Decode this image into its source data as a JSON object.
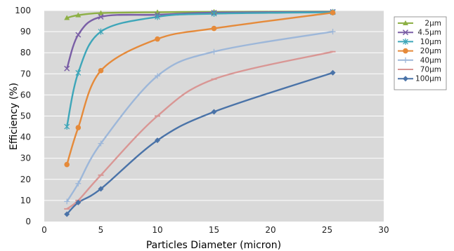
{
  "chart_data": {
    "type": "line",
    "title": "",
    "xlabel": "Particles Diameter (micron)",
    "ylabel": "Efficiency (%)",
    "xlim": [
      0,
      30
    ],
    "ylim": [
      0,
      100
    ],
    "x_ticks": [
      "0",
      "5",
      "10",
      "15",
      "20",
      "25",
      "30"
    ],
    "y_ticks": [
      "0",
      "10",
      "20",
      "30",
      "40",
      "50",
      "60",
      "70",
      "80",
      "90",
      "100"
    ],
    "grid": "horizontal",
    "background_color": "#d9d9d9",
    "legend_position": "right",
    "series": [
      {
        "name": "2μm",
        "color": "#8db045",
        "marker": "triangle",
        "x": [
          2,
          3,
          5,
          10,
          15,
          25.5
        ],
        "y": [
          96.5,
          97.8,
          98.8,
          99.2,
          99.4,
          99.5
        ]
      },
      {
        "name": "4.5μm",
        "color": "#7a5fa6",
        "marker": "x",
        "x": [
          2,
          3,
          5,
          10,
          15,
          25.5
        ],
        "y": [
          72.5,
          88.5,
          97,
          98,
          99,
          99.4
        ]
      },
      {
        "name": "10μm",
        "color": "#3ea6b9",
        "marker": "star",
        "x": [
          2,
          3,
          5,
          10,
          15,
          25.5
        ],
        "y": [
          45,
          70.5,
          90,
          97,
          98.5,
          99.2
        ]
      },
      {
        "name": "20μm",
        "color": "#e58a3a",
        "marker": "circle",
        "x": [
          2,
          3,
          5,
          10,
          15,
          25.5
        ],
        "y": [
          27,
          44.5,
          71.5,
          86.5,
          91.5,
          99
        ]
      },
      {
        "name": "40μm",
        "color": "#9db7d9",
        "marker": "plus",
        "x": [
          2,
          3,
          5,
          10,
          15,
          25.5
        ],
        "y": [
          9.5,
          18,
          37,
          69,
          80.5,
          90
        ]
      },
      {
        "name": "70μm",
        "color": "#d99694",
        "marker": "dash",
        "x": [
          2,
          3,
          5,
          10,
          15,
          25.5
        ],
        "y": [
          6,
          10,
          22,
          50,
          67.5,
          80.5
        ]
      },
      {
        "name": "100μm",
        "color": "#4a73a8",
        "marker": "diamond",
        "x": [
          2,
          3,
          5,
          10,
          15,
          25.5
        ],
        "y": [
          3.5,
          9,
          15.5,
          38.5,
          52,
          70.5
        ]
      }
    ]
  }
}
